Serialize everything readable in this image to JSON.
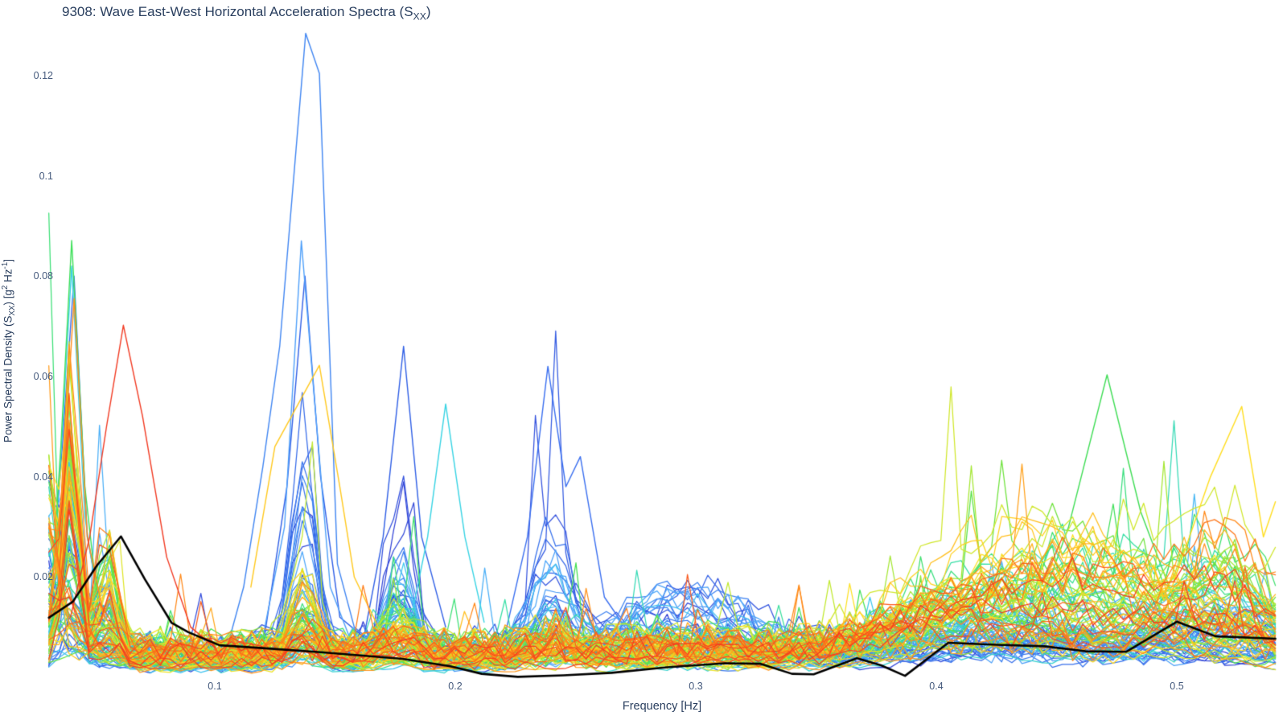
{
  "title": {
    "prefix": "9308: Wave East-West Horizontal Acceleration Spectra (S",
    "sub": "XX",
    "suffix": ")"
  },
  "axes": {
    "xlabel": "Frequency [Hz]",
    "ylabel_parts": [
      {
        "t": "Power Spectral Density (S"
      },
      {
        "t": "XX",
        "s": "sub"
      },
      {
        "t": ") [g"
      },
      {
        "t": "2",
        "s": "sup"
      },
      {
        "t": " Hz"
      },
      {
        "t": "-1",
        "s": "sup"
      },
      {
        "t": "]"
      }
    ]
  },
  "colors": {
    "title_text": "#2a3f5f",
    "tick_text": "#44597c",
    "mean_line": "#000000",
    "background": "#ffffff"
  },
  "chart_data": {
    "type": "line",
    "title": "9308: Wave East-West Horizontal Acceleration Spectra (Sxx)",
    "xlabel": "Frequency [Hz]",
    "ylabel": "Power Spectral Density (Sxx) [g2 Hz-1]",
    "x_range": [
      0.03,
      0.545
    ],
    "y_range": [
      -0.0015,
      0.13
    ],
    "grid": false,
    "legend": false,
    "xticks": {
      "values": [
        0.1,
        0.2,
        0.3,
        0.4,
        0.5
      ],
      "labels": [
        "0.1",
        "0.2",
        "0.3",
        "0.4",
        "0.5"
      ]
    },
    "yticks": {
      "values": [
        0.02,
        0.04,
        0.06,
        0.08,
        0.1,
        0.12
      ],
      "labels": [
        "0.02",
        "0.04",
        "0.06",
        "0.08",
        "0.1",
        "0.12"
      ]
    },
    "description": "Ensemble of ~100 wave-buoy acceleration power spectra colored by record index with a jet/rainbow colormap (blue early records to red late records) plus a thick black ensemble-mean spectrum. Blue records carry a strong swell peak near 0.135 Hz (max 0.128 g2/Hz); green-to-red records carry sharp low-frequency peaks near 0.04 Hz (up to 0.087) and broad high-frequency energy from 0.4 to 0.54 Hz (up to 0.06).",
    "mean_line": {
      "f": [
        0.031,
        0.041,
        0.051,
        0.061,
        0.071,
        0.082,
        0.089,
        0.102,
        0.121,
        0.144,
        0.178,
        0.198,
        0.211,
        0.226,
        0.245,
        0.265,
        0.288,
        0.312,
        0.327,
        0.34,
        0.349,
        0.367,
        0.377,
        0.387,
        0.405,
        0.425,
        0.445,
        0.462,
        0.479,
        0.5,
        0.516,
        0.541
      ],
      "v": [
        0.0119,
        0.0151,
        0.0223,
        0.0281,
        0.0195,
        0.0109,
        0.009,
        0.0064,
        0.0058,
        0.005,
        0.0037,
        0.0022,
        0.0007,
        0.0001,
        0.0004,
        0.0009,
        0.002,
        0.0028,
        0.0027,
        0.0007,
        0.0006,
        0.0038,
        0.0024,
        0.0003,
        0.0069,
        0.0065,
        0.0062,
        0.0052,
        0.0051,
        0.0111,
        0.0082,
        0.0077
      ]
    },
    "feature_lines": [
      {
        "name": "blue-left-peak",
        "t": 0.1,
        "color": "#3B6BEB",
        "pts": [
          [
            0.031,
            0.01
          ],
          [
            0.036,
            0.042
          ],
          [
            0.0415,
            0.08
          ],
          [
            0.047,
            0.028
          ],
          [
            0.054,
            0.01
          ]
        ]
      },
      {
        "name": "blue-swell-177",
        "t": 0.12,
        "color": "#2F5FE6",
        "pts": [
          [
            0.12,
            0.006
          ],
          [
            0.13,
            0.038
          ],
          [
            0.1375,
            0.08
          ],
          [
            0.144,
            0.04
          ],
          [
            0.152,
            0.012
          ],
          [
            0.162,
            0.008
          ],
          [
            0.17,
            0.028
          ],
          [
            0.1785,
            0.066
          ],
          [
            0.186,
            0.028
          ],
          [
            0.196,
            0.01
          ]
        ]
      },
      {
        "name": "blue-peak-238",
        "t": 0.15,
        "color": "#3A6FF0",
        "pts": [
          [
            0.22,
            0.007
          ],
          [
            0.23,
            0.028
          ],
          [
            0.2385,
            0.062
          ],
          [
            0.246,
            0.038
          ],
          [
            0.252,
            0.044
          ],
          [
            0.262,
            0.016
          ],
          [
            0.272,
            0.009
          ]
        ]
      },
      {
        "name": "big-blue-swell",
        "t": 0.18,
        "color": "#3F85F2",
        "pts": [
          [
            0.104,
            0.004
          ],
          [
            0.112,
            0.018
          ],
          [
            0.12,
            0.042
          ],
          [
            0.127,
            0.066
          ],
          [
            0.1378,
            0.1284
          ],
          [
            0.1435,
            0.1204
          ],
          [
            0.151,
            0.0226
          ],
          [
            0.158,
            0.01
          ],
          [
            0.168,
            0.006
          ]
        ]
      },
      {
        "name": "blue-swell-087",
        "t": 0.22,
        "color": "#4FA0FA",
        "pts": [
          [
            0.12,
            0.008
          ],
          [
            0.129,
            0.03
          ],
          [
            0.136,
            0.087
          ],
          [
            0.141,
            0.058
          ],
          [
            0.148,
            0.018
          ],
          [
            0.156,
            0.008
          ]
        ]
      },
      {
        "name": "cyan-left-peak",
        "t": 0.3,
        "color": "#3BD0E8",
        "pts": [
          [
            0.031,
            0.008
          ],
          [
            0.0365,
            0.048
          ],
          [
            0.0405,
            0.082
          ],
          [
            0.046,
            0.032
          ],
          [
            0.053,
            0.01
          ]
        ]
      },
      {
        "name": "cyan-peak-195",
        "t": 0.33,
        "color": "#38D4E4",
        "pts": [
          [
            0.18,
            0.008
          ],
          [
            0.1885,
            0.028
          ],
          [
            0.196,
            0.0545
          ],
          [
            0.204,
            0.028
          ],
          [
            0.212,
            0.011
          ]
        ]
      },
      {
        "name": "green-left-peak",
        "t": 0.48,
        "color": "#3FE05A",
        "pts": [
          [
            0.031,
            0.01
          ],
          [
            0.036,
            0.046
          ],
          [
            0.0405,
            0.0871
          ],
          [
            0.046,
            0.038
          ],
          [
            0.052,
            0.012
          ],
          [
            0.06,
            0.006
          ]
        ]
      },
      {
        "name": "green-right-peak",
        "t": 0.55,
        "color": "#3FDD55",
        "pts": [
          [
            0.44,
            0.01
          ],
          [
            0.455,
            0.03
          ],
          [
            0.471,
            0.0603
          ],
          [
            0.485,
            0.033
          ],
          [
            0.5,
            0.014
          ]
        ]
      },
      {
        "name": "gold-swell",
        "t": 0.68,
        "color": "#FFC91E",
        "pts": [
          [
            0.115,
            0.018
          ],
          [
            0.125,
            0.046
          ],
          [
            0.1435,
            0.0622
          ],
          [
            0.152,
            0.038
          ],
          [
            0.158,
            0.02
          ],
          [
            0.168,
            0.01
          ]
        ]
      },
      {
        "name": "yellow-right-peak",
        "t": 0.72,
        "color": "#FFDE20",
        "pts": [
          [
            0.498,
            0.018
          ],
          [
            0.514,
            0.04
          ],
          [
            0.527,
            0.054
          ],
          [
            0.536,
            0.028
          ],
          [
            0.541,
            0.035
          ]
        ]
      },
      {
        "name": "orange-left-peak",
        "t": 0.85,
        "color": "#FF8C1A",
        "pts": [
          [
            0.031,
            0.012
          ],
          [
            0.037,
            0.04
          ],
          [
            0.0415,
            0.0755
          ],
          [
            0.047,
            0.028
          ],
          [
            0.054,
            0.012
          ]
        ]
      },
      {
        "name": "red-low-peak",
        "t": 0.97,
        "color": "#F23A22",
        "pts": [
          [
            0.04,
            0.012
          ],
          [
            0.048,
            0.028
          ],
          [
            0.055,
            0.05
          ],
          [
            0.062,
            0.0702
          ],
          [
            0.07,
            0.052
          ],
          [
            0.08,
            0.024
          ],
          [
            0.09,
            0.01
          ],
          [
            0.1,
            0.006
          ]
        ]
      }
    ],
    "ensemble": {
      "count": 104,
      "points": 122,
      "f_min": 0.031,
      "f_max": 0.541,
      "seed": 11,
      "line_width": 1.25,
      "mean_line_width": 2.6,
      "color_stops": [
        "#3340D5",
        "#3566E8",
        "#3D85F2",
        "#4FA6FA",
        "#3CC8EE",
        "#35DFA6",
        "#41E055",
        "#7FE437",
        "#BFE92E",
        "#FFE122",
        "#FFAE1C",
        "#FF7A18",
        "#F53A20"
      ],
      "floor": {
        "base": 0.0015,
        "rand": 0.0055
      },
      "bands": [
        {
          "c": 0.031,
          "w": 0.005,
          "max": 0.05,
          "pow": 2.0,
          "amp": [
            0.7,
            0.8,
            0.8,
            0.8,
            0.8,
            0.9,
            0.8,
            0.7
          ]
        },
        {
          "c": 0.0405,
          "w": 0.0045,
          "max": 0.075,
          "pow": 1.4,
          "amp": [
            0.8,
            0.8,
            0.75,
            0.8,
            0.85,
            0.95,
            0.9,
            0.85
          ]
        },
        {
          "c": 0.055,
          "w": 0.006,
          "max": 0.045,
          "pow": 1.8,
          "amp": [
            0.5,
            0.5,
            0.5,
            0.5,
            0.55,
            0.6,
            0.65,
            0.7
          ]
        },
        {
          "c": 0.137,
          "w": 0.0075,
          "max": 0.055,
          "pow": 1.7,
          "amp": [
            1.0,
            0.9,
            0.55,
            0.25,
            0.3,
            0.5,
            0.25,
            0.1
          ]
        },
        {
          "c": 0.177,
          "w": 0.008,
          "max": 0.045,
          "pow": 1.8,
          "amp": [
            0.9,
            0.85,
            0.55,
            0.25,
            0.2,
            0.3,
            0.15,
            0.1
          ]
        },
        {
          "c": 0.24,
          "w": 0.011,
          "max": 0.042,
          "pow": 1.9,
          "amp": [
            0.8,
            0.75,
            0.45,
            0.2,
            0.12,
            0.1,
            0.08,
            0.08
          ]
        },
        {
          "c": 0.295,
          "w": 0.035,
          "max": 0.028,
          "pow": 1.6,
          "amp": [
            0.6,
            0.7,
            0.45,
            0.15,
            0.08,
            0.06,
            0.06,
            0.08
          ]
        },
        {
          "c": 0.4,
          "w": 0.04,
          "max": 0.02,
          "pow": 1.6,
          "amp": [
            0.2,
            0.25,
            0.4,
            0.55,
            0.6,
            0.6,
            0.6,
            0.55
          ]
        },
        {
          "c": 0.455,
          "w": 0.055,
          "max": 0.034,
          "pow": 1.6,
          "amp": [
            0.15,
            0.2,
            0.45,
            0.65,
            0.8,
            0.85,
            0.8,
            0.7
          ]
        },
        {
          "c": 0.52,
          "w": 0.03,
          "max": 0.032,
          "pow": 1.7,
          "amp": [
            0.15,
            0.2,
            0.4,
            0.6,
            0.7,
            0.8,
            0.8,
            0.7
          ]
        }
      ]
    }
  }
}
